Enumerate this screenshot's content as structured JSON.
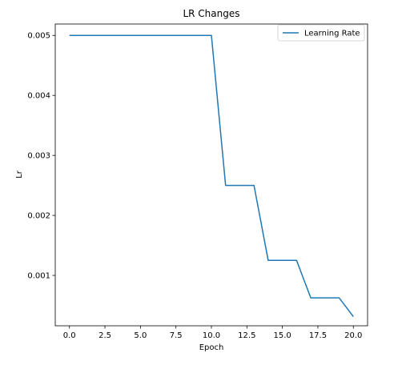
{
  "chart_data": {
    "type": "line",
    "title": "LR Changes",
    "xlabel": "Epoch",
    "ylabel": "Lr",
    "xlim": [
      -1,
      21
    ],
    "ylim": [
      0.00016,
      0.00519
    ],
    "xticks": [
      0.0,
      2.5,
      5.0,
      7.5,
      10.0,
      12.5,
      15.0,
      17.5,
      20.0
    ],
    "xtick_labels": [
      "0.0",
      "2.5",
      "5.0",
      "7.5",
      "10.0",
      "12.5",
      "15.0",
      "17.5",
      "20.0"
    ],
    "yticks": [
      0.001,
      0.002,
      0.003,
      0.004,
      0.005
    ],
    "ytick_labels": [
      "0.001",
      "0.002",
      "0.003",
      "0.004",
      "0.005"
    ],
    "grid": false,
    "legend_position": "upper right",
    "series": [
      {
        "name": "Learning Rate",
        "color": "#1f77b4",
        "x": [
          0,
          1,
          2,
          3,
          4,
          5,
          6,
          7,
          8,
          9,
          10,
          11,
          12,
          13,
          14,
          15,
          16,
          17,
          18,
          19,
          20
        ],
        "y": [
          0.005,
          0.005,
          0.005,
          0.005,
          0.005,
          0.005,
          0.005,
          0.005,
          0.005,
          0.005,
          0.005,
          0.0025,
          0.0025,
          0.0025,
          0.00125,
          0.00125,
          0.00125,
          0.000625,
          0.000625,
          0.000625,
          0.0003125
        ]
      }
    ]
  }
}
